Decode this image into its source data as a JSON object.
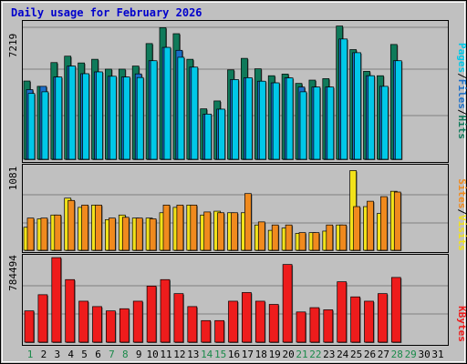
{
  "title": "Daily usage for February 2026",
  "colors": {
    "background": "#c0c0c0",
    "plot_bg": "#c0c0c0",
    "grid": "#808080",
    "title": "#0000cc",
    "pages": "#00c8e8",
    "files": "#1a6ec8",
    "hits": "#0f7a5a",
    "sites": "#f08a1e",
    "visits": "#f2e21a",
    "kbytes": "#ee1c1c",
    "weekend_day": "#1a8a4a",
    "weekday_day": "#000000"
  },
  "legend": {
    "pages": "Pages",
    "files": "Files",
    "hits": "Hits",
    "sites": "Sites",
    "visits": "Visits",
    "kbytes": "KBytes",
    "sep": "/"
  },
  "chart_data": [
    {
      "type": "bar",
      "title": "Daily usage for February 2026",
      "ylabel": "7219",
      "ylim": [
        0,
        7219
      ],
      "categories": [
        "1",
        "2",
        "3",
        "4",
        "5",
        "6",
        "7",
        "8",
        "9",
        "10",
        "11",
        "12",
        "13",
        "14",
        "15",
        "16",
        "17",
        "18",
        "19",
        "20",
        "21",
        "22",
        "23",
        "24",
        "25",
        "26",
        "27",
        "28",
        "29",
        "30",
        "31"
      ],
      "series": [
        {
          "name": "Hits",
          "values": [
            4280,
            3990,
            5290,
            5640,
            5270,
            5470,
            4930,
            4930,
            5100,
            6330,
            7200,
            6870,
            5470,
            2760,
            3190,
            4890,
            5520,
            4950,
            4570,
            4660,
            4150,
            4330,
            4410,
            7290,
            6000,
            4810,
            4570,
            6280,
            null,
            null,
            null
          ]
        },
        {
          "name": "Files",
          "values": [
            3810,
            3990,
            4500,
            5100,
            4680,
            4780,
            4540,
            4500,
            4670,
            5390,
            6120,
            5960,
            5040,
            2470,
            2740,
            4360,
            4460,
            4270,
            4180,
            4450,
            3950,
            3950,
            3950,
            6580,
            5830,
            4570,
            3990,
            5390,
            null,
            null,
            null
          ]
        },
        {
          "name": "Pages",
          "values": [
            3600,
            3690,
            4500,
            5100,
            4680,
            4780,
            4540,
            4500,
            4470,
            5390,
            6120,
            5580,
            5040,
            2470,
            2740,
            4360,
            4460,
            4270,
            4180,
            4450,
            3690,
            3950,
            3950,
            6580,
            5830,
            4570,
            3990,
            5390,
            null,
            null,
            null
          ]
        }
      ]
    },
    {
      "type": "bar",
      "ylabel": "1081",
      "ylim": [
        0,
        1081
      ],
      "categories": [
        "1",
        "2",
        "3",
        "4",
        "5",
        "6",
        "7",
        "8",
        "9",
        "10",
        "11",
        "12",
        "13",
        "14",
        "15",
        "16",
        "17",
        "18",
        "19",
        "20",
        "21",
        "22",
        "23",
        "24",
        "25",
        "26",
        "27",
        "28",
        "29",
        "30",
        "31"
      ],
      "series": [
        {
          "name": "Visits",
          "values": [
            300,
            410,
            460,
            680,
            560,
            590,
            400,
            460,
            420,
            420,
            490,
            560,
            590,
            460,
            510,
            490,
            490,
            330,
            260,
            290,
            220,
            230,
            250,
            330,
            1040,
            570,
            480,
            770,
            null,
            null,
            null
          ]
        },
        {
          "name": "Sites",
          "values": [
            420,
            420,
            460,
            650,
            590,
            590,
            420,
            430,
            420,
            410,
            590,
            590,
            590,
            500,
            490,
            490,
            740,
            370,
            330,
            330,
            230,
            230,
            330,
            330,
            570,
            640,
            700,
            760,
            null,
            null,
            null
          ]
        }
      ]
    },
    {
      "type": "bar",
      "ylabel": "784494",
      "ylim": [
        0,
        784494
      ],
      "categories": [
        "1",
        "2",
        "3",
        "4",
        "5",
        "6",
        "7",
        "8",
        "9",
        "10",
        "11",
        "12",
        "13",
        "14",
        "15",
        "16",
        "17",
        "18",
        "19",
        "20",
        "21",
        "22",
        "23",
        "24",
        "25",
        "26",
        "27",
        "28",
        "29",
        "30",
        "31"
      ],
      "series": [
        {
          "name": "KBytes",
          "values": [
            290000,
            440000,
            784000,
            580000,
            380000,
            330000,
            290000,
            310000,
            380000,
            520000,
            580000,
            450000,
            330000,
            200000,
            200000,
            380000,
            460000,
            380000,
            350000,
            720000,
            280000,
            320000,
            300000,
            560000,
            420000,
            380000,
            450000,
            600000,
            null,
            null,
            null
          ]
        }
      ]
    }
  ],
  "days": [
    "1",
    "2",
    "3",
    "4",
    "5",
    "6",
    "7",
    "8",
    "9",
    "10",
    "11",
    "12",
    "13",
    "14",
    "15",
    "16",
    "17",
    "18",
    "19",
    "20",
    "21",
    "22",
    "23",
    "24",
    "25",
    "26",
    "27",
    "28",
    "29",
    "30",
    "31"
  ],
  "weekend_days": [
    1,
    7,
    8,
    14,
    15,
    21,
    22,
    28,
    29
  ]
}
